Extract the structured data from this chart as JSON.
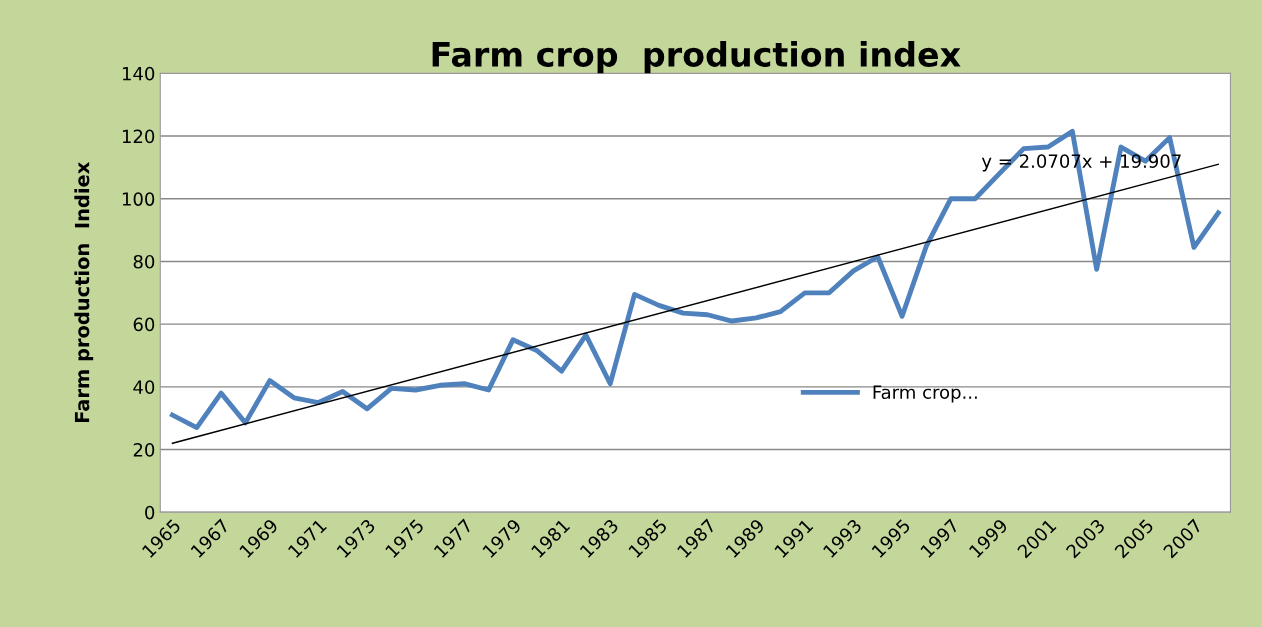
{
  "chart_data": {
    "type": "line",
    "title": "Farm crop  production index",
    "ylabel": "Farm production  Indiex",
    "categories": [
      "1965",
      null,
      "1967",
      null,
      "1969",
      null,
      "1971",
      null,
      "1973",
      null,
      "1975",
      null,
      "1977",
      null,
      "1979",
      null,
      "1981",
      null,
      "1983",
      null,
      "1985",
      null,
      "1987",
      null,
      "1989",
      null,
      "1991",
      null,
      "1993",
      null,
      "1995",
      null,
      "1997",
      null,
      "1999",
      null,
      "2001",
      null,
      "2003",
      null,
      "2005",
      null,
      "2007",
      null
    ],
    "series": [
      {
        "name": "Farm crop...",
        "color": "#4f81bd",
        "values": [
          31,
          27,
          38,
          28.5,
          42,
          36.5,
          35,
          38.5,
          33,
          39.5,
          39,
          40.5,
          41,
          39,
          55,
          51.5,
          45,
          56.5,
          41,
          69.5,
          66,
          63.5,
          63,
          61,
          62,
          64,
          70,
          70,
          77,
          81.5,
          62.5,
          85,
          100,
          100,
          108,
          116,
          116.5,
          121.5,
          77.5,
          116.5,
          112,
          119.5,
          84.5,
          95.5
        ]
      },
      {
        "type": "line",
        "color": "#000000",
        "values": [
          22,
          null,
          null,
          null,
          null,
          null,
          null,
          null,
          null,
          null,
          null,
          null,
          null,
          null,
          null,
          null,
          null,
          null,
          null,
          null,
          null,
          null,
          null,
          null,
          null,
          null,
          null,
          null,
          null,
          null,
          null,
          null,
          null,
          null,
          null,
          null,
          null,
          null,
          null,
          null,
          null,
          null,
          null,
          111
        ]
      }
    ],
    "annotations": [
      "y = 2.0707x + 19.907"
    ],
    "ylim": [
      0,
      140
    ],
    "yticks": [
      0,
      20,
      40,
      60,
      80,
      100,
      120,
      140
    ],
    "grid": "y",
    "legend": "right"
  }
}
